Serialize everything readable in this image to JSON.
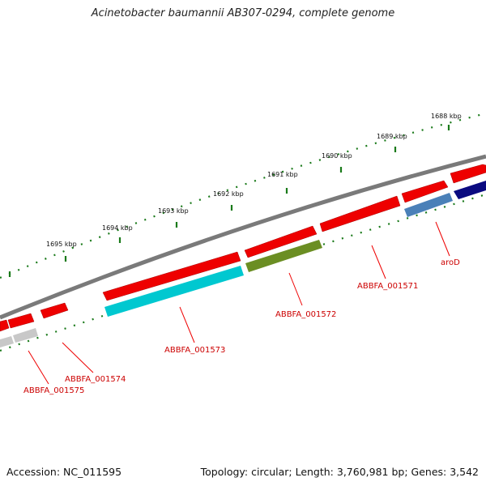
{
  "title": "Acinetobacter baumannii AB307-0294, complete genome",
  "footer": {
    "accession": "Accession: NC_011595",
    "topology": "Topology: circular; Length: 3,760,981 bp; Genes: 3,542"
  },
  "colors": {
    "background": "#ffffff",
    "backbone": "#808080",
    "tick": "#1a7a1a",
    "forward_gene": "#ee0000",
    "label": "#cc0000"
  },
  "ticks": [
    "1688 kbp",
    "1689 kbp",
    "1690 kbp",
    "1691 kbp",
    "1692 kbp",
    "1693 kbp",
    "1694 kbp",
    "1695 kbp"
  ],
  "gene_labels": [
    "aroD",
    "ABBFA_001571",
    "ABBFA_001572",
    "ABBFA_001573",
    "ABBFA_001574",
    "ABBFA_001575"
  ],
  "genes": {
    "aroD": {
      "color": "#4a80b8"
    },
    "ABBFA_001571": {
      "color": "#ee0000"
    },
    "ABBFA_001572": {
      "color": "#6b8e23"
    },
    "ABBFA_001573": {
      "color": "#00c8d0"
    },
    "ABBFA_001574": {
      "color": "#c8c8c8"
    },
    "ABBFA_001575": {
      "color": "#c8c8c8"
    },
    "unlabeled_dark": {
      "color": "#0a0a80"
    }
  }
}
